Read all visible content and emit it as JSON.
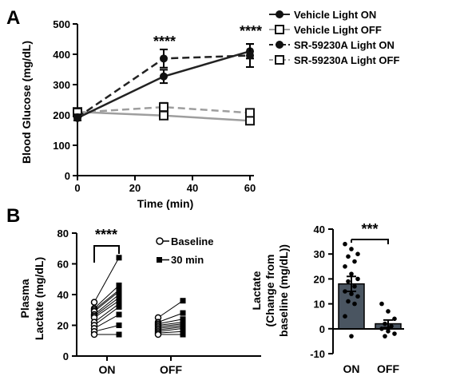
{
  "panel_labels": [
    "A",
    "B"
  ],
  "chart_data": [
    {
      "type": "line",
      "panel": "A",
      "xlabel": "Time (min)",
      "ylabel": "Blood Glucose (mg/dL)",
      "xlim": [
        0,
        60
      ],
      "ylim": [
        0,
        500
      ],
      "x_ticks": [
        0,
        20,
        40,
        60
      ],
      "y_ticks": [
        0,
        100,
        200,
        300,
        400,
        500
      ],
      "x": [
        0,
        30,
        60
      ],
      "series": [
        {
          "name": "Vehicle Light ON",
          "values": [
            190,
            327,
            410
          ],
          "errors": [
            8,
            22,
            24
          ],
          "color": "#222222",
          "marker": "filled-circle",
          "dash": false
        },
        {
          "name": "Vehicle Light OFF",
          "values": [
            210,
            198,
            181
          ],
          "errors": [
            5,
            8,
            12
          ],
          "color": "#9e9e9e",
          "marker": "open-square",
          "dash": false
        },
        {
          "name": "SR-59230A Light ON",
          "values": [
            192,
            386,
            396
          ],
          "errors": [
            10,
            30,
            38
          ],
          "color": "#222222",
          "marker": "filled-circle",
          "dash": true
        },
        {
          "name": "SR-59230A Light OFF",
          "values": [
            208,
            226,
            207
          ],
          "errors": [
            7,
            14,
            10
          ],
          "color": "#9e9e9e",
          "marker": "open-square",
          "dash": true
        }
      ],
      "annotations": [
        {
          "x": 30,
          "text": "****"
        },
        {
          "x": 60,
          "text": "****"
        }
      ],
      "legend_position": "top-right"
    },
    {
      "type": "scatter",
      "panel": "B",
      "subtype": "paired",
      "categories": [
        "ON",
        "OFF"
      ],
      "ylabel": "Plasma Lactate (mg/dL)",
      "ylim": [
        0,
        80
      ],
      "y_ticks": [
        0,
        20,
        40,
        60,
        80
      ],
      "legend": [
        "Baseline",
        "30 min"
      ],
      "pairs": [
        {
          "category": "ON",
          "baseline": [
            35,
            31,
            30,
            29,
            27,
            26,
            25,
            22,
            20,
            18,
            16,
            14
          ],
          "min30": [
            64,
            46,
            43,
            42,
            40,
            38,
            36,
            34,
            32,
            27,
            20,
            14
          ]
        },
        {
          "category": "OFF",
          "baseline": [
            25,
            22,
            21,
            20,
            19,
            18,
            17,
            16,
            15,
            14
          ],
          "min30": [
            36,
            28,
            24,
            22,
            21,
            20,
            19,
            18,
            16,
            14
          ]
        }
      ],
      "annotations": [
        {
          "from": "ON baseline",
          "to": "ON 30 min",
          "text": "****"
        }
      ]
    },
    {
      "type": "bar",
      "panel": "B",
      "categories": [
        "ON",
        "OFF"
      ],
      "values": [
        18,
        2
      ],
      "errors": [
        3,
        1.5
      ],
      "colors": [
        "#4a5561",
        "#4a5561"
      ],
      "ylabel": "Lactate (Change from baseline (mg/dL))",
      "ylim": [
        -10,
        40
      ],
      "y_ticks": [
        -10,
        0,
        10,
        20,
        30,
        40
      ],
      "points": [
        [
          34,
          32,
          30,
          29,
          27,
          25,
          22,
          20,
          19,
          17,
          15,
          14,
          13,
          11,
          10,
          5,
          -3
        ],
        [
          10,
          7,
          4,
          2,
          1,
          0,
          -1,
          -2,
          -3
        ]
      ],
      "annotations": [
        {
          "between": [
            "ON",
            "OFF"
          ],
          "text": "***"
        }
      ]
    }
  ]
}
